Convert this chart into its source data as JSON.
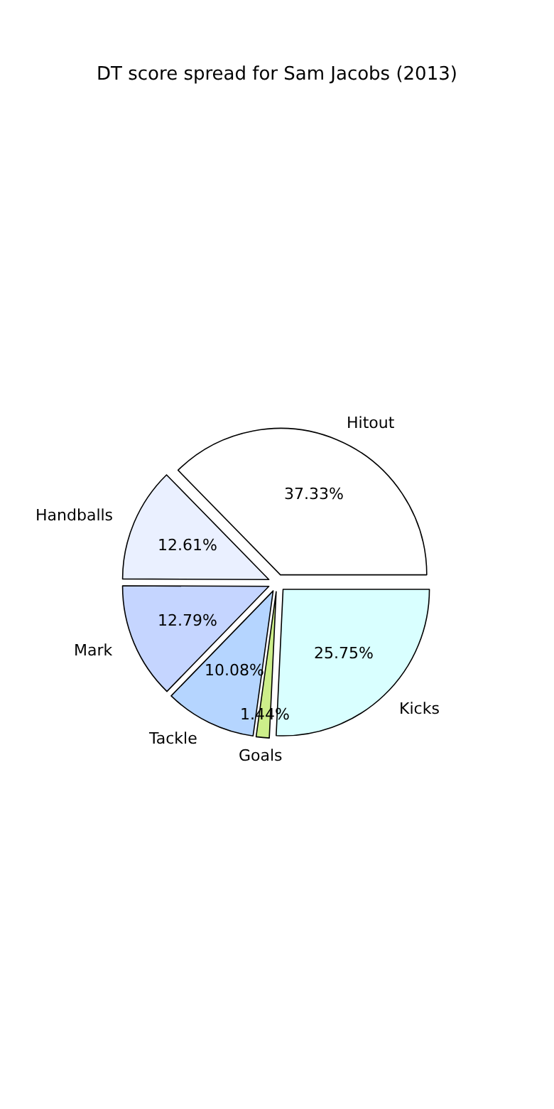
{
  "chart_data": {
    "type": "pie",
    "title": "DT score spread for Sam Jacobs (2013)",
    "categories": [
      "Hitout",
      "Handballs",
      "Mark",
      "Tackle",
      "Goals",
      "Kicks"
    ],
    "values": [
      37.33,
      12.61,
      12.79,
      10.08,
      1.44,
      25.75
    ],
    "colors": [
      "#ffffff",
      "#eaf0ff",
      "#c5d5ff",
      "#b5d5ff",
      "#cdee8a",
      "#d9ffff"
    ],
    "value_labels": [
      "37.33%",
      "12.61%",
      "12.79%",
      "10.08%",
      "1.44%",
      "25.75%"
    ]
  }
}
